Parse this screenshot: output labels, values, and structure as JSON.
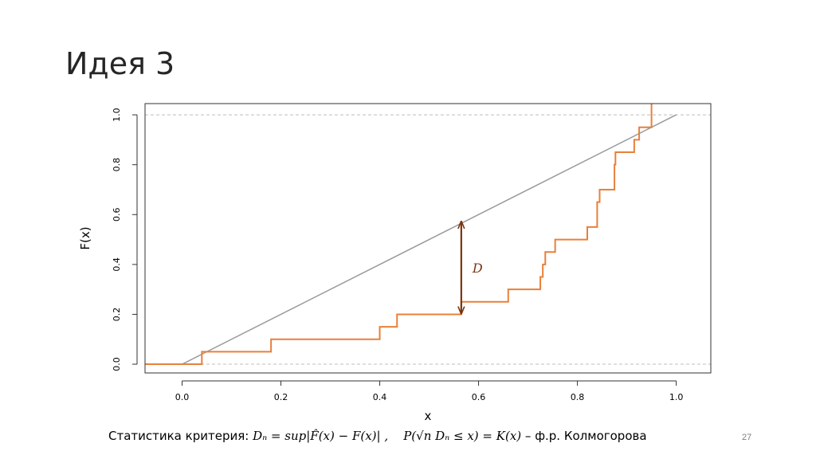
{
  "slide": {
    "title": "Идея 3",
    "page_number": "27"
  },
  "caption": {
    "prefix": "Статистика критерия: ",
    "statistic": "Dₙ = sup|F̂(x) − F(x)| ,",
    "limit": "P(√n Dₙ ≤ x) = K(x)",
    "suffix": " – ф.р. Колмогорова"
  },
  "chart_data": {
    "type": "line",
    "xlabel": "x",
    "ylabel": "F(x)",
    "xlim": [
      -0.075,
      1.07
    ],
    "ylim": [
      -0.035,
      1.045
    ],
    "xticks": [
      "0.0",
      "0.2",
      "0.4",
      "0.6",
      "0.8",
      "1.0"
    ],
    "yticks": [
      "0.0",
      "0.2",
      "0.4",
      "0.6",
      "0.8",
      "1.0"
    ],
    "reference_lines_y": [
      0,
      1
    ],
    "colors": {
      "ecdf": "#e8803a",
      "theoretical": "#9a9a9a",
      "arrow": "#7a3510",
      "reference": "#bfbfbf"
    },
    "series": [
      {
        "kind": "theoretical-cdf",
        "x": [
          0,
          1
        ],
        "y": [
          0,
          1
        ]
      },
      {
        "kind": "empirical-cdf",
        "jumps_x": [
          0.04,
          0.18,
          0.4,
          0.435,
          0.565,
          0.66,
          0.725,
          0.73,
          0.735,
          0.755,
          0.82,
          0.84,
          0.845,
          0.875,
          0.877,
          0.915,
          0.925,
          0.95
        ],
        "steps_y": [
          0.0,
          0.05,
          0.1,
          0.15,
          0.2,
          0.25,
          0.3,
          0.35,
          0.4,
          0.45,
          0.5,
          0.55,
          0.65,
          0.7,
          0.8,
          0.85,
          0.9,
          0.95,
          1.0
        ],
        "x_start": -0.075
      }
    ],
    "annotations": [
      {
        "kind": "double-arrow",
        "label": "D",
        "x": 0.565,
        "y_from": 0.2,
        "y_to": 0.575
      }
    ]
  }
}
